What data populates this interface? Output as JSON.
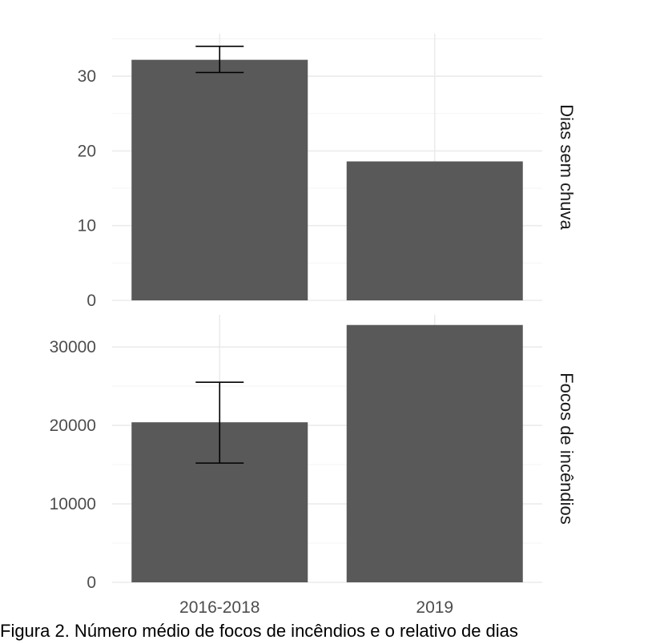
{
  "chart_data": [
    {
      "type": "bar",
      "facet_label": "Dias sem chuva",
      "categories": [
        "2016-2018",
        "2019"
      ],
      "values": [
        32.2,
        18.6
      ],
      "error_bars": [
        {
          "low": 30.5,
          "high": 34.0
        },
        null
      ],
      "ylim": [
        0,
        35.7
      ],
      "yticks": [
        0,
        10,
        20,
        30
      ],
      "yticks_label": [
        "0",
        "10",
        "20",
        "30"
      ],
      "minor_yticks": [
        5,
        15,
        25,
        35
      ],
      "grid": true,
      "xlabel": "",
      "ylabel": ""
    },
    {
      "type": "bar",
      "facet_label": "Focos de incêndios",
      "categories": [
        "2016-2018",
        "2019"
      ],
      "values": [
        20400,
        32800
      ],
      "error_bars": [
        {
          "low": 15200,
          "high": 25500
        },
        null
      ],
      "ylim": [
        0,
        34100
      ],
      "yticks": [
        0,
        10000,
        20000,
        30000
      ],
      "yticks_label": [
        "0",
        "10000",
        "20000",
        "30000"
      ],
      "minor_yticks": [
        5000,
        15000,
        25000
      ],
      "grid": true,
      "xlabel": "",
      "ylabel": ""
    }
  ],
  "caption": "Figura 2. Número médio de focos de incêndios e o relativo de dias"
}
